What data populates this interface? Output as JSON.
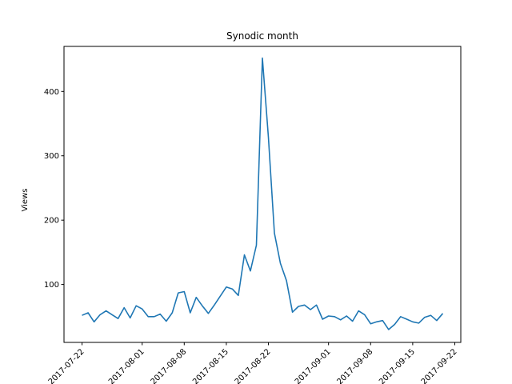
{
  "chart_data": {
    "type": "line",
    "title": "Synodic month",
    "xlabel": "",
    "ylabel": "Views",
    "grid": false,
    "legend": "none",
    "x_tick_labels": [
      "2017-07-22",
      "2017-08-01",
      "2017-08-08",
      "2017-08-15",
      "2017-08-22",
      "2017-09-01",
      "2017-09-08",
      "2017-09-15",
      "2017-09-22"
    ],
    "y_ticks": [
      100,
      200,
      300,
      400
    ],
    "ylim": [
      10,
      470
    ],
    "series": [
      {
        "color": "#1f77b4",
        "x": [
          "2017-07-22",
          "2017-07-23",
          "2017-07-24",
          "2017-07-25",
          "2017-07-26",
          "2017-07-27",
          "2017-07-28",
          "2017-07-29",
          "2017-07-30",
          "2017-07-31",
          "2017-08-01",
          "2017-08-02",
          "2017-08-03",
          "2017-08-04",
          "2017-08-05",
          "2017-08-06",
          "2017-08-07",
          "2017-08-08",
          "2017-08-09",
          "2017-08-10",
          "2017-08-11",
          "2017-08-12",
          "2017-08-13",
          "2017-08-14",
          "2017-08-15",
          "2017-08-16",
          "2017-08-17",
          "2017-08-18",
          "2017-08-19",
          "2017-08-20",
          "2017-08-21",
          "2017-08-22",
          "2017-08-23",
          "2017-08-24",
          "2017-08-25",
          "2017-08-26",
          "2017-08-27",
          "2017-08-28",
          "2017-08-29",
          "2017-08-30",
          "2017-08-31",
          "2017-09-01",
          "2017-09-02",
          "2017-09-03",
          "2017-09-04",
          "2017-09-05",
          "2017-09-06",
          "2017-09-07",
          "2017-09-08",
          "2017-09-09",
          "2017-09-10",
          "2017-09-11",
          "2017-09-12",
          "2017-09-13",
          "2017-09-14",
          "2017-09-15",
          "2017-09-16",
          "2017-09-17",
          "2017-09-18",
          "2017-09-19",
          "2017-09-20"
        ],
        "y": [
          52,
          56,
          42,
          53,
          59,
          53,
          47,
          64,
          48,
          67,
          62,
          50,
          50,
          54,
          43,
          56,
          87,
          89,
          56,
          80,
          67,
          55,
          68,
          82,
          96,
          93,
          83,
          146,
          121,
          161,
          452,
          329,
          180,
          133,
          106,
          57,
          66,
          68,
          61,
          68,
          46,
          51,
          50,
          45,
          51,
          43,
          59,
          53,
          39,
          42,
          44,
          30,
          38,
          50,
          46,
          42,
          40,
          49,
          52,
          44,
          55
        ]
      }
    ]
  }
}
